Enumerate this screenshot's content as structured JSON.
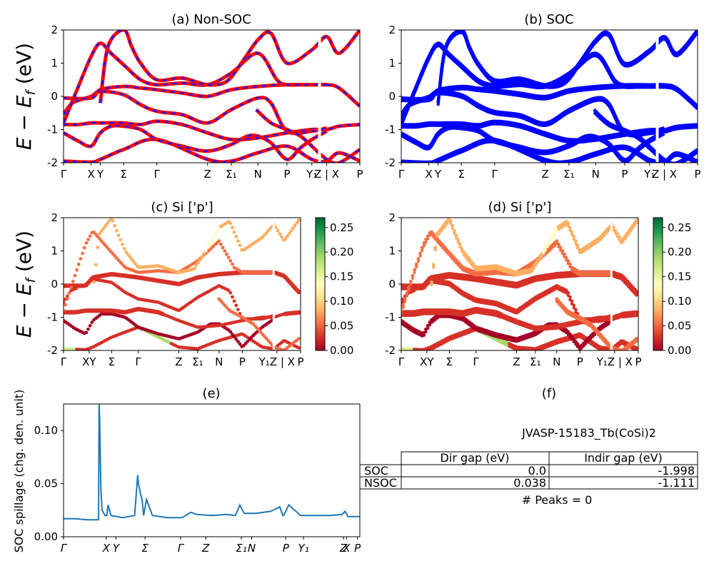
{
  "figure": {
    "panel_a_title": "(a) Non-SOC",
    "panel_b_title": "(b) SOC",
    "panel_c_title": "(c)  Si ['p']",
    "panel_d_title": "(d) Si ['p']",
    "panel_e_title": "(e)",
    "panel_f_title": "(f)",
    "band_ylabel": "E − E_f (eV)",
    "spill_ylabel": "SOC spillage (chg. den. unit)"
  },
  "colors": {
    "nonsoc_line": "#ff0000",
    "nonsoc_dash": "#1a1aff",
    "soc_line": "#0000ff",
    "spillage_line": "#1f77b4",
    "colormap": "RdYlGn"
  },
  "table": {
    "material": "JVASP-15183_Tb(CoSi)2",
    "col_headers": [
      "Dir gap (eV)",
      "Indir gap (eV)"
    ],
    "rows": [
      {
        "label": "SOC",
        "dir": "0.0",
        "indir": "-1.998"
      },
      {
        "label": "NSOC",
        "dir": "0.038",
        "indir": "-1.111"
      }
    ],
    "peaks": "# Peaks = 0"
  },
  "chart_data": [
    {
      "panel": "a",
      "type": "line",
      "title": "(a) Non-SOC",
      "xlabel": "",
      "ylabel": "E − E_f (eV)",
      "ylim": [
        -2,
        2
      ],
      "yticks": [
        -2,
        -1,
        0,
        1,
        2
      ],
      "xlim": [
        0,
        1
      ],
      "kpoint_labels": [
        "Γ",
        "X",
        "Y",
        "Σ",
        "Γ",
        "Z",
        "Σ₁",
        "N",
        "P",
        "Y₁",
        "Z | X",
        "P"
      ],
      "kpoint_positions": [
        0,
        0.093,
        0.124,
        0.203,
        0.315,
        0.486,
        0.566,
        0.656,
        0.754,
        0.838,
        0.888,
        1.0
      ],
      "bands": [
        {
          "name": "",
          "x": [
            0,
            0.093,
            0.124,
            0.203,
            0.315,
            0.486,
            0.566,
            0.656,
            0.754,
            0.838,
            0.888,
            0.93,
            1.0
          ],
          "y": [
            -1.95,
            -1.98,
            -1.9,
            -1.6,
            -1.3,
            -1.9,
            -1.95,
            -1.7,
            -1.5,
            -1.9,
            -1.95,
            -1.7,
            -1.95
          ]
        },
        {
          "name": "",
          "x": [
            0,
            0.05,
            0.093,
            0.124,
            0.16,
            0.203,
            0.26,
            0.315,
            0.4,
            0.486,
            0.566,
            0.62,
            0.656,
            0.7,
            0.754,
            0.8,
            0.838,
            0.888
          ],
          "y": [
            -1.1,
            -1.35,
            -1.5,
            -1.1,
            -0.9,
            -0.9,
            -1.0,
            -1.3,
            -1.5,
            -1.65,
            -1.45,
            -1.2,
            -1.2,
            -1.4,
            -1.9,
            -1.55,
            -1.3,
            -1.05
          ]
        },
        {
          "name": "",
          "x": [
            0,
            0.05,
            0.093,
            0.124,
            0.2,
            0.26,
            0.315,
            0.4,
            0.486,
            0.566,
            0.656,
            0.754,
            0.838,
            0.888,
            0.93,
            1.0
          ],
          "y": [
            -0.85,
            -0.85,
            -0.8,
            -0.8,
            -0.8,
            -0.85,
            -0.75,
            -0.85,
            -1.1,
            -1.3,
            -1.25,
            -1.1,
            -1.0,
            -1.0,
            -0.9,
            -0.85
          ]
        },
        {
          "name": "",
          "x": [
            0,
            0.03,
            0.093,
            0.124,
            0.203,
            0.26,
            0.315,
            0.4,
            0.486,
            0.566,
            0.656,
            0.7,
            0.754,
            0.838,
            0.888
          ],
          "y": [
            -0.55,
            -0.2,
            0.0,
            0.15,
            0.05,
            -0.25,
            -0.45,
            -0.55,
            -0.8,
            -0.4,
            -0.05,
            -0.2,
            -1.05,
            -1.05,
            -0.95
          ]
        },
        {
          "name": "",
          "x": [
            0,
            0.093,
            0.124,
            0.203,
            0.26,
            0.315,
            0.4,
            0.486,
            0.566,
            0.656,
            0.754,
            0.838,
            0.888,
            0.93,
            1.0
          ],
          "y": [
            -0.05,
            -0.05,
            0.2,
            0.3,
            0.25,
            0.2,
            0.1,
            0.0,
            0.2,
            0.3,
            0.35,
            0.35,
            0.35,
            0.25,
            -0.3
          ]
        },
        {
          "name": "",
          "x": [
            0,
            0.05,
            0.093,
            0.124,
            0.16,
            0.203,
            0.26,
            0.315,
            0.4,
            0.486,
            0.566,
            0.656,
            0.72,
            0.754,
            0.8,
            0.838,
            0.888
          ],
          "y": [
            -0.8,
            0.3,
            1.2,
            1.6,
            1.3,
            0.95,
            0.5,
            0.35,
            0.4,
            0.35,
            0.7,
            1.3,
            0.5,
            0.35,
            0.35,
            0.35,
            0.35
          ]
        },
        {
          "name": "",
          "x": [
            0.124,
            0.15,
            0.203,
            0.23,
            0.26,
            0.315,
            0.4,
            0.486,
            0.55,
            0.6,
            0.656,
            0.7,
            0.754,
            0.838,
            0.888,
            0.93,
            1.0
          ],
          "y": [
            -0.2,
            1.5,
            2.0,
            1.5,
            1.0,
            0.5,
            0.55,
            0.35,
            0.45,
            1.0,
            1.7,
            1.9,
            1.0,
            1.4,
            1.8,
            1.3,
            2.0
          ]
        },
        {
          "name": "",
          "x": [
            0.65,
            0.7,
            0.754,
            0.8,
            0.838,
            0.888,
            0.93,
            1.0
          ],
          "y": [
            -0.4,
            -0.8,
            -1.0,
            -1.2,
            -1.5,
            -1.9,
            -2.0,
            -1.6
          ]
        }
      ]
    },
    {
      "panel": "b",
      "type": "line",
      "title": "(b) SOC",
      "xlabel": "",
      "ylabel": "",
      "ylim": [
        -2,
        2
      ],
      "yticks": [
        -2,
        -1,
        0,
        1,
        2
      ],
      "xlim": [
        0,
        1
      ],
      "kpoint_labels": [
        "Γ",
        "X",
        "Y",
        "Σ",
        "Γ",
        "Z",
        "Σ₁",
        "N",
        "P",
        "Y₁",
        "Z | X",
        "P"
      ],
      "kpoint_positions": [
        0,
        0.093,
        0.124,
        0.203,
        0.315,
        0.486,
        0.566,
        0.656,
        0.754,
        0.838,
        0.888,
        1.0
      ],
      "bands": [
        {
          "name": "",
          "x": [
            0,
            0.093,
            0.124,
            0.203,
            0.315,
            0.486,
            0.566,
            0.656,
            0.754,
            0.838,
            0.888,
            0.93,
            1.0
          ],
          "y": [
            -1.95,
            -1.98,
            -1.9,
            -1.6,
            -1.3,
            -1.9,
            -1.95,
            -1.7,
            -1.5,
            -1.9,
            -1.95,
            -1.7,
            -1.95
          ]
        },
        {
          "name": "",
          "x": [
            0,
            0.05,
            0.093,
            0.124,
            0.16,
            0.203,
            0.26,
            0.315,
            0.4,
            0.486,
            0.566,
            0.62,
            0.656,
            0.7,
            0.754,
            0.8,
            0.838,
            0.888
          ],
          "y": [
            -1.1,
            -1.35,
            -1.5,
            -1.1,
            -0.9,
            -0.9,
            -1.0,
            -1.3,
            -1.5,
            -1.65,
            -1.45,
            -1.2,
            -1.2,
            -1.4,
            -1.9,
            -1.55,
            -1.3,
            -1.05
          ]
        },
        {
          "name": "",
          "x": [
            0,
            0.05,
            0.093,
            0.124,
            0.2,
            0.26,
            0.315,
            0.4,
            0.486,
            0.566,
            0.656,
            0.754,
            0.838,
            0.888,
            0.93,
            1.0
          ],
          "y": [
            -0.85,
            -0.85,
            -0.8,
            -0.8,
            -0.8,
            -0.85,
            -0.75,
            -0.85,
            -1.1,
            -1.3,
            -1.25,
            -1.1,
            -1.0,
            -1.0,
            -0.9,
            -0.85
          ]
        },
        {
          "name": "",
          "x": [
            0,
            0.03,
            0.093,
            0.124,
            0.203,
            0.26,
            0.315,
            0.4,
            0.486,
            0.566,
            0.656,
            0.7,
            0.754,
            0.838,
            0.888
          ],
          "y": [
            -0.55,
            -0.2,
            0.0,
            0.15,
            0.05,
            -0.25,
            -0.45,
            -0.55,
            -0.8,
            -0.4,
            -0.05,
            -0.2,
            -1.05,
            -1.05,
            -0.95
          ]
        },
        {
          "name": "",
          "x": [
            0,
            0.093,
            0.124,
            0.203,
            0.26,
            0.315,
            0.4,
            0.486,
            0.566,
            0.656,
            0.754,
            0.838,
            0.888,
            0.93,
            1.0
          ],
          "y": [
            -0.05,
            -0.05,
            0.2,
            0.3,
            0.25,
            0.2,
            0.1,
            0.0,
            0.2,
            0.3,
            0.35,
            0.35,
            0.35,
            0.25,
            -0.3
          ]
        },
        {
          "name": "",
          "x": [
            0,
            0.05,
            0.093,
            0.124,
            0.16,
            0.203,
            0.26,
            0.315,
            0.4,
            0.486,
            0.566,
            0.656,
            0.72,
            0.754,
            0.8,
            0.838,
            0.888
          ],
          "y": [
            -0.8,
            0.3,
            1.2,
            1.6,
            1.3,
            0.95,
            0.5,
            0.35,
            0.4,
            0.35,
            0.7,
            1.3,
            0.5,
            0.35,
            0.35,
            0.35,
            0.35
          ]
        },
        {
          "name": "",
          "x": [
            0.124,
            0.15,
            0.203,
            0.23,
            0.26,
            0.315,
            0.4,
            0.486,
            0.55,
            0.6,
            0.656,
            0.7,
            0.754,
            0.838,
            0.888,
            0.93,
            1.0
          ],
          "y": [
            -0.2,
            1.5,
            2.0,
            1.5,
            1.0,
            0.5,
            0.55,
            0.35,
            0.45,
            1.0,
            1.7,
            1.9,
            1.0,
            1.4,
            1.8,
            1.3,
            2.0
          ]
        },
        {
          "name": "",
          "x": [
            0.65,
            0.7,
            0.754,
            0.8,
            0.838,
            0.888,
            0.93,
            1.0
          ],
          "y": [
            -0.4,
            -0.8,
            -1.0,
            -1.2,
            -1.5,
            -1.9,
            -2.0,
            -1.6
          ]
        }
      ]
    },
    {
      "panel": "c",
      "type": "scatter",
      "title": "(c)  Si ['p']",
      "ylabel": "E − E_f (eV)",
      "ylim": [
        -2,
        2
      ],
      "yticks": [
        -2,
        -1,
        0,
        1,
        2
      ],
      "kpoint_labels": [
        "Γ",
        "XY",
        "Σ",
        "Γ",
        "Z",
        "Σ₁",
        "N",
        "P",
        "Y₁Z | X",
        "P"
      ],
      "kpoint_positions": [
        0,
        0.108,
        0.203,
        0.315,
        0.486,
        0.566,
        0.656,
        0.754,
        0.9,
        1.0
      ],
      "colorbar": {
        "min": 0.0,
        "max": 0.27,
        "ticks": [
          "0.00",
          "0.05",
          "0.10",
          "0.15",
          "0.20",
          "0.25"
        ]
      },
      "weights_note": "band weights 0.0–0.27, mostly 0.0–0.06"
    },
    {
      "panel": "d",
      "type": "scatter",
      "title": "(d) Si ['p']",
      "ylabel": "",
      "ylim": [
        -2,
        2
      ],
      "yticks": [
        -2,
        -1,
        0,
        1,
        2
      ],
      "kpoint_labels": [
        "Γ",
        "XY",
        "Σ",
        "Γ",
        "Z",
        "Σ₁",
        "N",
        "P",
        "Y₁Z | X",
        "P"
      ],
      "kpoint_positions": [
        0,
        0.108,
        0.203,
        0.315,
        0.486,
        0.566,
        0.656,
        0.754,
        0.9,
        1.0
      ],
      "colorbar": {
        "min": 0.0,
        "max": 0.27,
        "ticks": [
          "0.00",
          "0.05",
          "0.10",
          "0.15",
          "0.20",
          "0.25"
        ]
      }
    },
    {
      "panel": "e",
      "type": "line",
      "title": "(e)",
      "xlabel": "",
      "ylabel": "SOC spillage (chg. den. unit)",
      "ylim": [
        0,
        0.125
      ],
      "yticks": [
        "0.00",
        "0.05",
        "0.10"
      ],
      "kpoint_labels": [
        "Γ",
        "X",
        "Y",
        "Σ",
        "Γ",
        "Z",
        "Σ₁",
        "N",
        "P",
        "Y₁",
        "Z",
        "X",
        "P"
      ],
      "kpoint_positions": [
        0,
        0.144,
        0.177,
        0.275,
        0.395,
        0.48,
        0.6,
        0.635,
        0.75,
        0.81,
        0.945,
        0.955,
        0.992
      ],
      "series": [
        {
          "name": "",
          "x": [
            0,
            0.04,
            0.08,
            0.1,
            0.118,
            0.12,
            0.122,
            0.126,
            0.13,
            0.14,
            0.146,
            0.15,
            0.16,
            0.2,
            0.24,
            0.25,
            0.253,
            0.26,
            0.265,
            0.27,
            0.28,
            0.3,
            0.35,
            0.4,
            0.43,
            0.45,
            0.5,
            0.55,
            0.58,
            0.595,
            0.6,
            0.61,
            0.65,
            0.7,
            0.73,
            0.74,
            0.745,
            0.76,
            0.8,
            0.85,
            0.9,
            0.94,
            0.95,
            0.96,
            1.0
          ],
          "y": [
            0.017,
            0.017,
            0.016,
            0.016,
            0.016,
            0.125,
            0.11,
            0.045,
            0.025,
            0.02,
            0.02,
            0.03,
            0.02,
            0.018,
            0.02,
            0.058,
            0.05,
            0.04,
            0.035,
            0.02,
            0.035,
            0.02,
            0.018,
            0.018,
            0.023,
            0.021,
            0.02,
            0.021,
            0.02,
            0.03,
            0.027,
            0.022,
            0.022,
            0.024,
            0.028,
            0.02,
            0.021,
            0.03,
            0.02,
            0.02,
            0.02,
            0.021,
            0.024,
            0.019,
            0.019
          ]
        }
      ]
    }
  ]
}
